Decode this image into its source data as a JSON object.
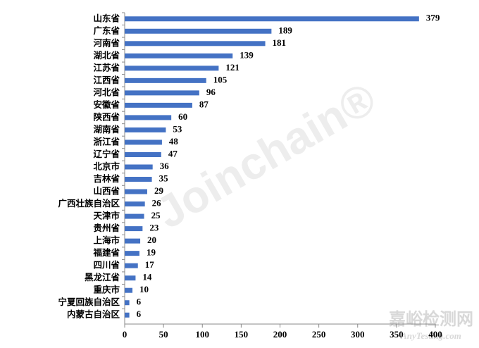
{
  "chart_data": {
    "type": "bar",
    "orientation": "horizontal",
    "categories": [
      "山东省",
      "广东省",
      "河南省",
      "湖北省",
      "江苏省",
      "江西省",
      "河北省",
      "安徽省",
      "陕西省",
      "湖南省",
      "浙江省",
      "辽宁省",
      "北京市",
      "吉林省",
      "山西省",
      "广西壮族自治区",
      "天津市",
      "贵州省",
      "上海市",
      "福建省",
      "四川省",
      "黑龙江省",
      "重庆市",
      "宁夏回族自治区",
      "内蒙古自治区"
    ],
    "values": [
      379,
      189,
      181,
      139,
      121,
      105,
      96,
      87,
      60,
      53,
      48,
      47,
      36,
      35,
      29,
      26,
      25,
      23,
      20,
      19,
      17,
      14,
      10,
      6,
      6
    ],
    "color": "#4472c4",
    "xlim": [
      0,
      400
    ],
    "xticks": [
      0,
      50,
      100,
      150,
      200,
      250,
      300,
      350,
      400
    ],
    "grid": false
  },
  "watermarks": [
    "Joinchain®",
    "嘉峪检测网",
    "AnyTesting.com"
  ]
}
